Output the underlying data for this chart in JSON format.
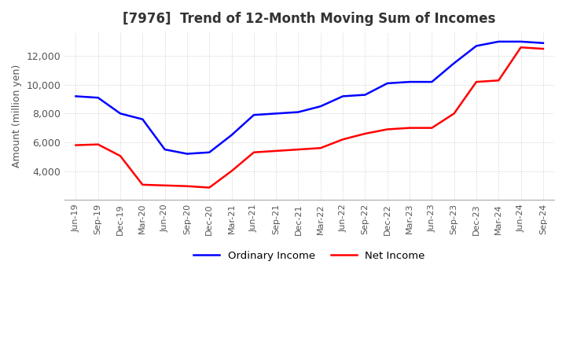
{
  "title": "[7976]  Trend of 12-Month Moving Sum of Incomes",
  "ylabel": "Amount (million yen)",
  "x_labels": [
    "Jun-19",
    "Sep-19",
    "Dec-19",
    "Mar-20",
    "Jun-20",
    "Sep-20",
    "Dec-20",
    "Mar-21",
    "Jun-21",
    "Sep-21",
    "Dec-21",
    "Mar-22",
    "Jun-22",
    "Sep-22",
    "Dec-22",
    "Mar-23",
    "Jun-23",
    "Sep-23",
    "Dec-23",
    "Mar-24",
    "Jun-24",
    "Sep-24"
  ],
  "ordinary_income": [
    9200,
    9100,
    8000,
    7600,
    5500,
    5200,
    5300,
    6500,
    7900,
    8000,
    8100,
    8500,
    9200,
    9300,
    10100,
    10200,
    10200,
    11500,
    12700,
    13000,
    13000,
    12900
  ],
  "net_income": [
    5800,
    5850,
    5050,
    3050,
    3000,
    2950,
    2850,
    4000,
    5300,
    5400,
    5500,
    5600,
    6200,
    6600,
    6900,
    7000,
    7000,
    8000,
    10200,
    10300,
    12600,
    12500
  ],
  "ordinary_color": "#0000ff",
  "net_color": "#ff0000",
  "ylim_min": 2000,
  "ylim_max": 13700,
  "yticks": [
    4000,
    6000,
    8000,
    10000,
    12000
  ],
  "background_color": "#ffffff",
  "grid_color": "#cccccc",
  "grid_linestyle": "dotted",
  "title_fontsize": 12,
  "axis_fontsize": 9,
  "legend_labels": [
    "Ordinary Income",
    "Net Income"
  ]
}
